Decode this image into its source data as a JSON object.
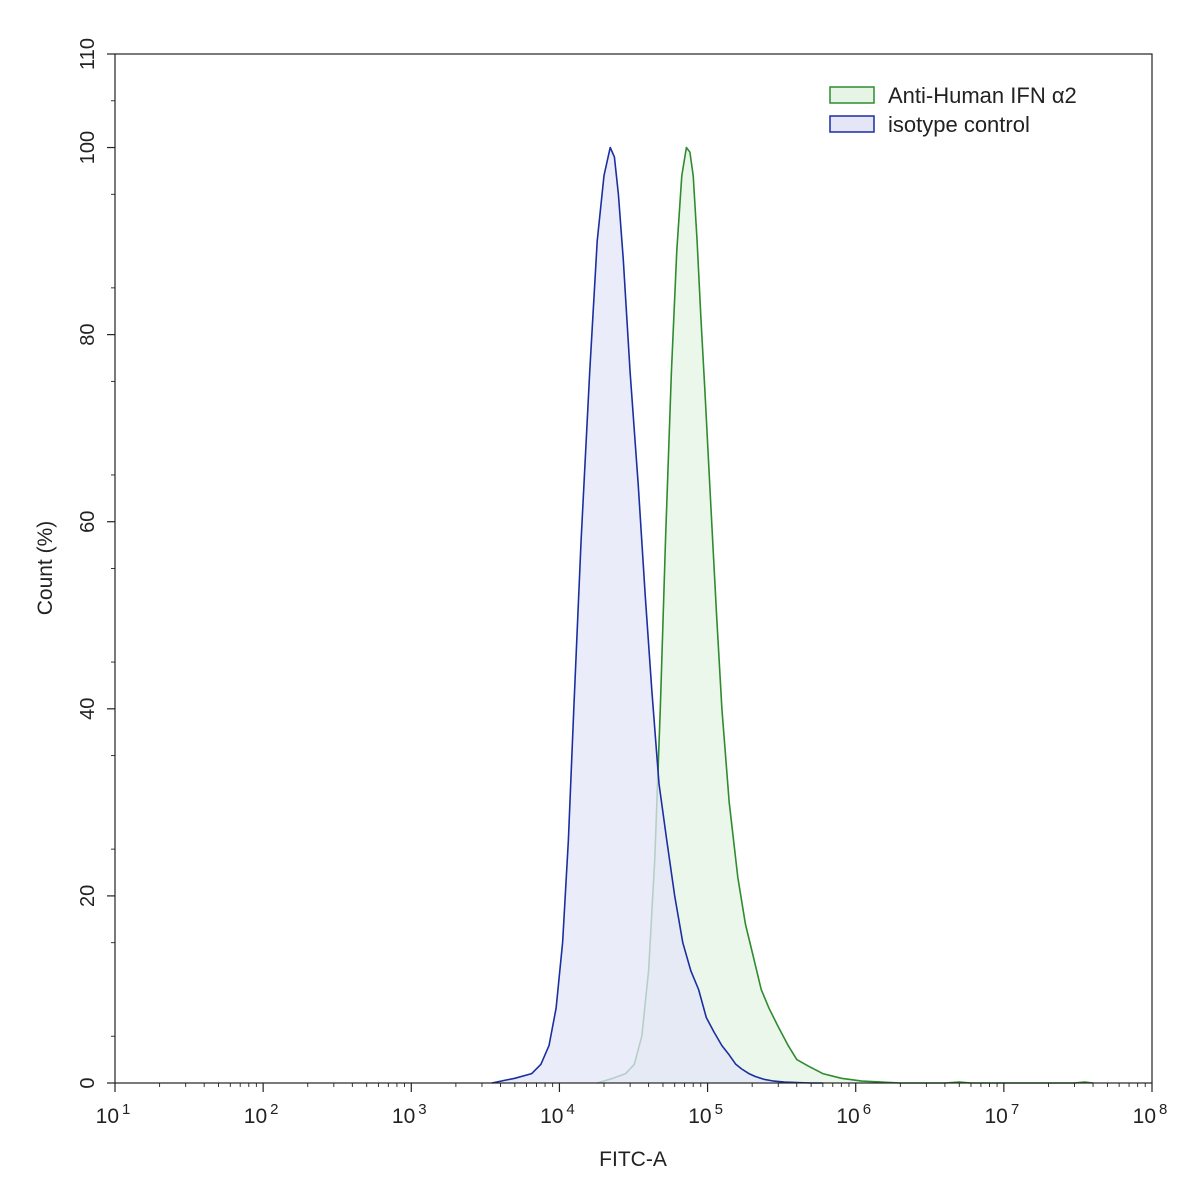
{
  "chart_data": {
    "type": "area",
    "xlabel": "FITC-A",
    "ylabel": "Count  (%)",
    "x_scale": "log",
    "xlim": [
      10,
      100000000
    ],
    "ylim": [
      0,
      110
    ],
    "x_ticks": [
      {
        "value": 10,
        "base": "10",
        "exp": "1"
      },
      {
        "value": 100,
        "base": "10",
        "exp": "2"
      },
      {
        "value": 1000,
        "base": "10",
        "exp": "3"
      },
      {
        "value": 10000,
        "base": "10",
        "exp": "4"
      },
      {
        "value": 100000,
        "base": "10",
        "exp": "5"
      },
      {
        "value": 1000000,
        "base": "10",
        "exp": "6"
      },
      {
        "value": 10000000,
        "base": "10",
        "exp": "7"
      },
      {
        "value": 100000000,
        "base": "10",
        "exp": "8"
      }
    ],
    "y_ticks": [
      {
        "value": 0,
        "label": "0"
      },
      {
        "value": 20,
        "label": "20"
      },
      {
        "value": 40,
        "label": "40"
      },
      {
        "value": 60,
        "label": "60"
      },
      {
        "value": 80,
        "label": "80"
      },
      {
        "value": 100,
        "label": "100"
      },
      {
        "value": 110,
        "label": "110"
      }
    ],
    "grid": false,
    "legend_position": "top-right",
    "series": [
      {
        "name": "Anti-Human IFN α2",
        "stroke": "#2e8b2e",
        "fill": "#e6f4e6",
        "x": [
          18000,
          23000,
          28000,
          32000,
          36000,
          40000,
          44000,
          48000,
          52000,
          57000,
          62000,
          67000,
          72000,
          76000,
          80000,
          85000,
          90000,
          96000,
          105000,
          115000,
          125000,
          140000,
          160000,
          180000,
          200000,
          230000,
          260000,
          300000,
          350000,
          400000,
          480000,
          600000,
          800000,
          1100000,
          1500000,
          2000000,
          4000000,
          5000000,
          6000000,
          30000000,
          35000000,
          40000000
        ],
        "y": [
          0,
          0.5,
          1,
          2,
          5,
          12,
          24,
          40,
          58,
          76,
          89,
          97,
          100,
          99.5,
          97,
          90,
          82,
          74,
          62,
          50,
          40,
          30,
          22,
          17,
          14,
          10,
          8,
          6,
          4,
          2.5,
          1.8,
          1,
          0.5,
          0.2,
          0.1,
          0,
          0,
          0.1,
          0,
          0,
          0.1,
          0
        ]
      },
      {
        "name": "isotype control",
        "stroke": "#1a2fa0",
        "fill": "#e4e6f8",
        "x": [
          3500,
          5000,
          6500,
          7500,
          8500,
          9500,
          10500,
          11500,
          12500,
          14000,
          16000,
          18000,
          20000,
          22000,
          23500,
          25000,
          27000,
          30000,
          34000,
          38000,
          42000,
          47000,
          53000,
          60000,
          68000,
          77000,
          87000,
          98000,
          110000,
          125000,
          140000,
          155000,
          170000,
          190000,
          210000,
          240000,
          280000,
          330000,
          400000,
          500000,
          600000
        ],
        "y": [
          0,
          0.5,
          1,
          2,
          4,
          8,
          15,
          26,
          40,
          58,
          76,
          90,
          97,
          100,
          99,
          95,
          88,
          76,
          64,
          52,
          42,
          32,
          26,
          20,
          15,
          12,
          10,
          7,
          5.5,
          4,
          3,
          2,
          1.5,
          1,
          0.7,
          0.4,
          0.2,
          0.1,
          0.05,
          0,
          0
        ]
      }
    ]
  }
}
